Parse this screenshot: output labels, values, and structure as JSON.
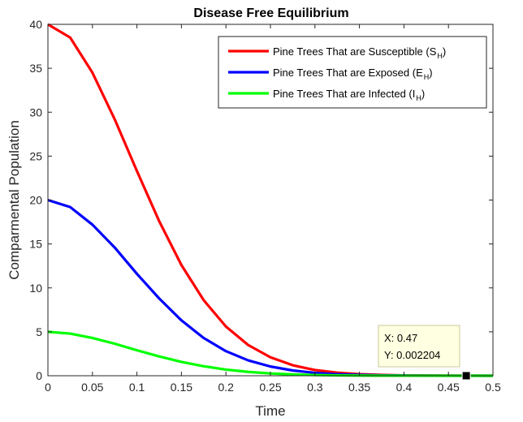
{
  "chart_data": {
    "type": "line",
    "title": "Disease Free Equilibrium",
    "xlabel": "Time",
    "ylabel": "Comparmental Population",
    "xlim": [
      0,
      0.5
    ],
    "ylim": [
      0,
      40
    ],
    "xticks": [
      0,
      0.05,
      0.1,
      0.15,
      0.2,
      0.25,
      0.3,
      0.35,
      0.4,
      0.45,
      0.5
    ],
    "xtick_labels": [
      "0",
      "0.05",
      "0.1",
      "0.15",
      "0.2",
      "0.25",
      "0.3",
      "0.35",
      "0.4",
      "0.45",
      "0.5"
    ],
    "yticks": [
      0,
      5,
      10,
      15,
      20,
      25,
      30,
      35,
      40
    ],
    "ytick_labels": [
      "0",
      "5",
      "10",
      "15",
      "20",
      "25",
      "30",
      "35",
      "40"
    ],
    "grid": false,
    "legend_position": "top-right",
    "series": [
      {
        "name": "Pine Trees That are Susceptible (S",
        "subscript": "H",
        "suffix": ")",
        "color": "#ff0000",
        "x": [
          0,
          0.025,
          0.05,
          0.075,
          0.1,
          0.125,
          0.15,
          0.175,
          0.2,
          0.225,
          0.25,
          0.275,
          0.3,
          0.325,
          0.35,
          0.375,
          0.4,
          0.45,
          0.5
        ],
        "y": [
          40,
          38.5,
          34.5,
          29.2,
          23.3,
          17.6,
          12.6,
          8.6,
          5.6,
          3.5,
          2.1,
          1.2,
          0.65,
          0.35,
          0.18,
          0.09,
          0.04,
          0.01,
          0.002
        ]
      },
      {
        "name": "Pine Trees That are Exposed (E",
        "subscript": "H",
        "suffix": ")",
        "color": "#0000ff",
        "x": [
          0,
          0.025,
          0.05,
          0.075,
          0.1,
          0.125,
          0.15,
          0.175,
          0.2,
          0.225,
          0.25,
          0.275,
          0.3,
          0.325,
          0.35,
          0.375,
          0.4,
          0.45,
          0.5
        ],
        "y": [
          20,
          19.2,
          17.2,
          14.6,
          11.6,
          8.8,
          6.3,
          4.3,
          2.8,
          1.75,
          1.05,
          0.6,
          0.33,
          0.17,
          0.09,
          0.045,
          0.02,
          0.005,
          0.001
        ]
      },
      {
        "name": "Pine Trees That are Infected (I",
        "subscript": "H",
        "suffix": ")",
        "color": "#00ff00",
        "x": [
          0,
          0.025,
          0.05,
          0.075,
          0.1,
          0.125,
          0.15,
          0.175,
          0.2,
          0.225,
          0.25,
          0.275,
          0.3,
          0.325,
          0.35,
          0.375,
          0.4,
          0.45,
          0.5
        ],
        "y": [
          5,
          4.8,
          4.3,
          3.65,
          2.9,
          2.2,
          1.58,
          1.08,
          0.7,
          0.44,
          0.26,
          0.15,
          0.08,
          0.04,
          0.02,
          0.01,
          0.005,
          0.001,
          0.0002
        ]
      }
    ],
    "datatip": {
      "x": 0.47,
      "y": 0.002204,
      "x_text": "X: 0.47",
      "y_text": "Y: 0.002204"
    }
  }
}
